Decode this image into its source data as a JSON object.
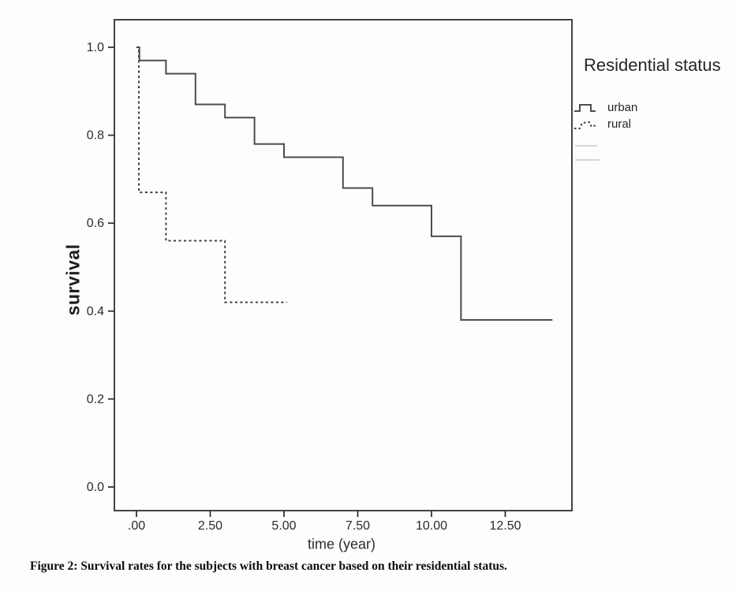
{
  "figure": {
    "caption": "Figure 2: Survival rates for the subjects with breast cancer based on their residential status."
  },
  "legend": {
    "title": "Residential status",
    "items": [
      {
        "label": "urban",
        "line_style": "solid",
        "color": "#4d4d4d"
      },
      {
        "label": "rural",
        "line_style": "dashed",
        "color": "#3f3f3f"
      }
    ],
    "faint_extra_entries": 2
  },
  "chart_data": {
    "type": "line",
    "subtype": "kaplan-meier-step-survival",
    "title": "",
    "xlabel": "time (year)",
    "ylabel": "survival",
    "xlim": [
      -0.75,
      14.8
    ],
    "ylim": [
      -0.05,
      1.05
    ],
    "grid": false,
    "legend_position": "right-outside",
    "frame_color": "#2f2f2f",
    "x_ticks": {
      "values": [
        0,
        2.5,
        5,
        7.5,
        10,
        12.5
      ],
      "labels": [
        ".00",
        "2.50",
        "5.00",
        "7.50",
        "10.00",
        "12.50"
      ]
    },
    "y_ticks": {
      "values": [
        0,
        0.2,
        0.4,
        0.6,
        0.8,
        1.0
      ],
      "labels": [
        "0.0",
        "0.2",
        "0.4",
        "0.6",
        "0.8",
        "1.0"
      ]
    },
    "series": [
      {
        "name": "urban",
        "line": "solid",
        "color": "#4d4d4d",
        "start": [
          0,
          1.0
        ],
        "steps": [
          [
            0.1,
            0.97
          ],
          [
            1,
            0.94
          ],
          [
            2,
            0.87
          ],
          [
            3,
            0.84
          ],
          [
            4,
            0.78
          ],
          [
            5,
            0.75
          ],
          [
            7,
            0.68
          ],
          [
            8,
            0.64
          ],
          [
            10,
            0.57
          ],
          [
            11,
            0.38
          ]
        ],
        "end_time": 14.1
      },
      {
        "name": "rural",
        "line": "dashed",
        "color": "#3f3f3f",
        "start": [
          0,
          1.0
        ],
        "steps": [
          [
            0.08,
            0.67
          ],
          [
            1,
            0.56
          ],
          [
            3,
            0.42
          ]
        ],
        "end_time": 5.1
      }
    ]
  }
}
